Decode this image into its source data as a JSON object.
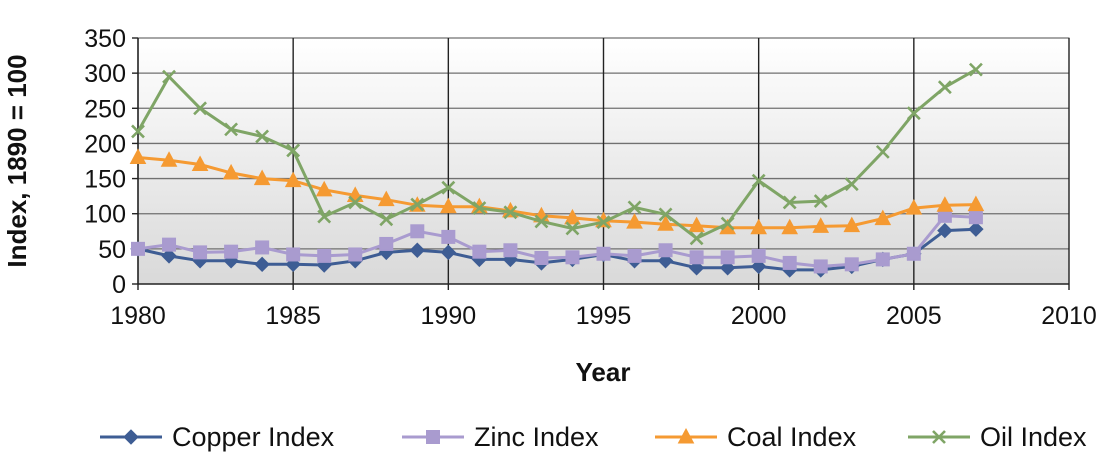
{
  "chart_data": {
    "type": "line",
    "title": "",
    "xlabel": "Year",
    "ylabel": "Index, 1890 = 100",
    "xlim": [
      1980,
      2010
    ],
    "ylim": [
      0,
      350
    ],
    "xticks": [
      1980,
      1985,
      1990,
      1995,
      2000,
      2005,
      2010
    ],
    "yticks": [
      0,
      50,
      100,
      150,
      200,
      250,
      300,
      350
    ],
    "grid": "horizontal and vertical major gridlines",
    "legend_position": "bottom",
    "x": [
      1980,
      1981,
      1982,
      1983,
      1984,
      1985,
      1986,
      1987,
      1988,
      1989,
      1990,
      1991,
      1992,
      1993,
      1994,
      1995,
      1996,
      1997,
      1998,
      1999,
      2000,
      2001,
      2002,
      2003,
      2004,
      2005,
      2006,
      2007
    ],
    "series": [
      {
        "name": "Copper Index",
        "color": "#3e5d94",
        "marker": "diamond",
        "values": [
          50,
          40,
          33,
          33,
          28,
          28,
          27,
          33,
          45,
          48,
          45,
          35,
          35,
          30,
          35,
          42,
          33,
          33,
          23,
          23,
          25,
          20,
          20,
          25,
          35,
          43,
          76,
          78
        ]
      },
      {
        "name": "Zinc Index",
        "color": "#a99bcf",
        "marker": "square",
        "values": [
          50,
          56,
          45,
          46,
          52,
          42,
          40,
          42,
          57,
          75,
          67,
          46,
          48,
          37,
          38,
          43,
          40,
          48,
          38,
          38,
          40,
          30,
          25,
          28,
          35,
          43,
          97,
          95
        ]
      },
      {
        "name": "Coal Index",
        "color": "#f59a32",
        "marker": "triangle",
        "values": [
          180,
          176,
          170,
          158,
          150,
          147,
          134,
          126,
          120,
          112,
          110,
          110,
          104,
          97,
          94,
          90,
          88,
          85,
          83,
          80,
          80,
          80,
          82,
          83,
          93,
          108,
          112,
          113
        ]
      },
      {
        "name": "Oil Index",
        "color": "#7fa566",
        "marker": "x",
        "values": [
          217,
          295,
          250,
          220,
          210,
          190,
          96,
          116,
          92,
          113,
          137,
          108,
          102,
          89,
          79,
          88,
          109,
          99,
          65,
          86,
          147,
          116,
          118,
          142,
          188,
          243,
          280,
          305
        ]
      }
    ]
  }
}
